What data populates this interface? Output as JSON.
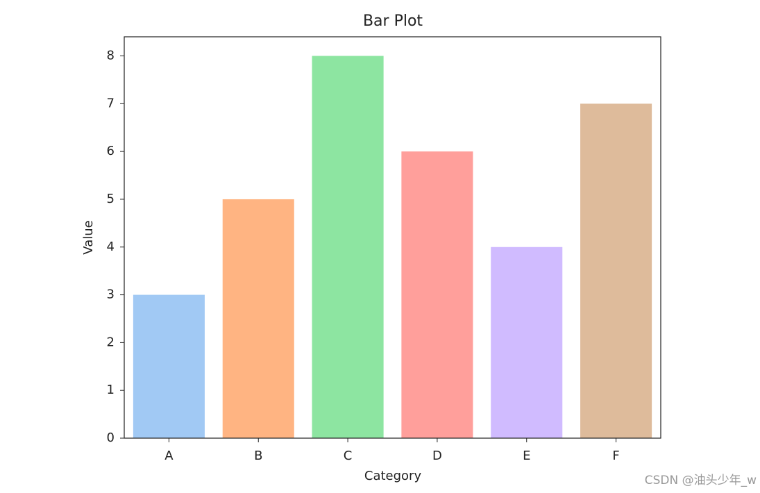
{
  "chart_data": {
    "type": "bar",
    "title": "Bar Plot",
    "xlabel": "Category",
    "ylabel": "Value",
    "categories": [
      "A",
      "B",
      "C",
      "D",
      "E",
      "F"
    ],
    "values": [
      3,
      5,
      8,
      6,
      4,
      7
    ],
    "colors": [
      "#a1c9f4",
      "#ffb482",
      "#8de5a1",
      "#ff9f9b",
      "#d0bbff",
      "#debb9b"
    ],
    "ylim": [
      0,
      8.4
    ],
    "yticks": [
      0,
      1,
      2,
      3,
      4,
      5,
      6,
      7,
      8
    ],
    "grid": false
  },
  "watermark": "CSDN @油头少年_w"
}
